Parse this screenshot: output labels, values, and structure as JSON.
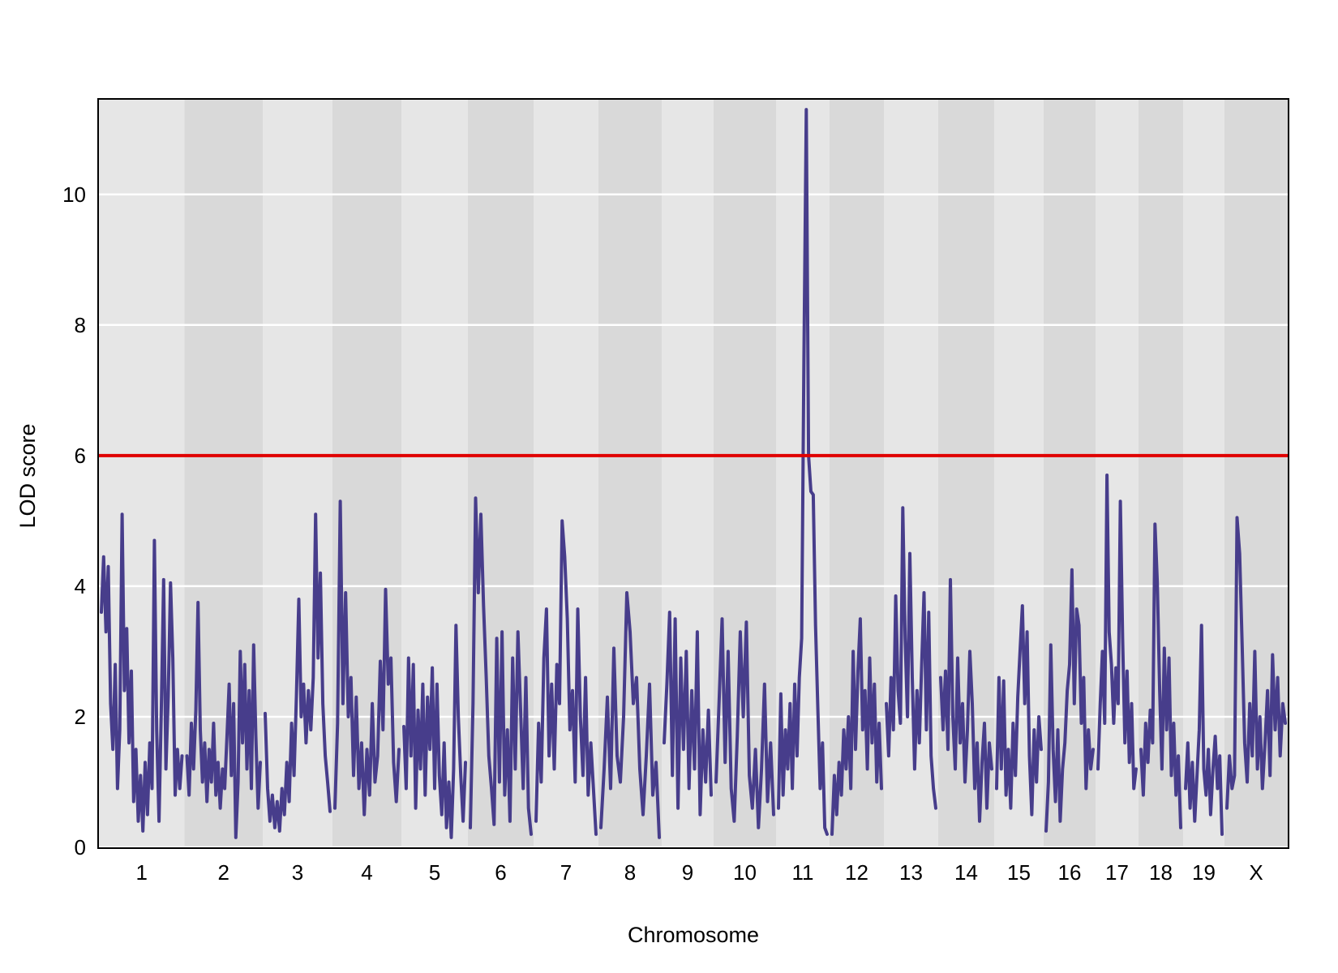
{
  "chart_data": {
    "type": "line",
    "title": "",
    "xlabel": "Chromosome",
    "ylabel": "LOD score",
    "ylim": [
      0,
      11.45
    ],
    "yticks": [
      0,
      2,
      4,
      6,
      8,
      10
    ],
    "grid": "horizontal white gridlines at each y tick, alternating gray chromosome bands",
    "legend": "none",
    "threshold_line": {
      "value": 6,
      "color": "#e00000"
    },
    "max_peak": {
      "chromosome": "11",
      "lod": 11.3
    },
    "colors": {
      "trace": "#473d8b",
      "band_light": "#e6e6e6",
      "band_dark": "#d9d9d9",
      "gridline": "#ffffff",
      "threshold": "#e00000",
      "border": "#000000",
      "text": "#000000",
      "page_background": "#ffffff"
    },
    "chromosomes": [
      {
        "name": "1",
        "length": 105.5,
        "lod": [
          3.6,
          4.45,
          3.3,
          4.3,
          2.2,
          1.5,
          2.8,
          0.9,
          1.8,
          5.1,
          2.4,
          3.35,
          1.6,
          2.7,
          0.7,
          1.5,
          0.4,
          1.1,
          0.25,
          1.3,
          0.5,
          1.6,
          0.9,
          4.7,
          1.8,
          0.4,
          2.1,
          4.1,
          1.2,
          2.3,
          4.05,
          2.9,
          0.8,
          1.5,
          0.9,
          1.4
        ]
      },
      {
        "name": "2",
        "length": 96.5,
        "lod": [
          1.4,
          0.8,
          1.9,
          1.2,
          2.1,
          3.75,
          1.8,
          1.0,
          1.6,
          0.7,
          1.5,
          1.0,
          1.9,
          0.8,
          1.3,
          0.6,
          1.2,
          0.9,
          1.7,
          2.5,
          1.1,
          2.2,
          0.15,
          1.0,
          3.0,
          1.6,
          2.8,
          1.2,
          2.4,
          0.9,
          3.1,
          1.7,
          0.6,
          1.3
        ]
      },
      {
        "name": "3",
        "length": 86,
        "lod": [
          2.05,
          0.9,
          0.4,
          0.8,
          0.3,
          0.7,
          0.25,
          0.9,
          0.5,
          1.3,
          0.7,
          1.9,
          1.1,
          2.3,
          3.8,
          2.0,
          2.5,
          1.6,
          2.4,
          1.8,
          2.6,
          5.1,
          2.9,
          4.2,
          2.2,
          1.4,
          1.0,
          0.55
        ]
      },
      {
        "name": "4",
        "length": 85,
        "lod": [
          0.6,
          1.9,
          5.3,
          2.2,
          3.9,
          2.0,
          2.6,
          1.1,
          2.3,
          0.9,
          1.6,
          0.5,
          1.5,
          0.8,
          2.2,
          1.0,
          1.4,
          2.85,
          1.8,
          3.95,
          2.5,
          2.9,
          1.3,
          0.7,
          1.5
        ]
      },
      {
        "name": "5",
        "length": 82,
        "lod": [
          1.85,
          0.9,
          2.9,
          1.4,
          2.8,
          0.6,
          2.1,
          1.2,
          2.5,
          0.8,
          2.3,
          1.5,
          2.75,
          0.9,
          2.5,
          1.1,
          0.5,
          1.6,
          0.3,
          1.0,
          0.15,
          1.2,
          3.4,
          2.0,
          1.1,
          0.4,
          1.3
        ]
      },
      {
        "name": "6",
        "length": 81,
        "lod": [
          0.3,
          2.2,
          5.35,
          3.9,
          5.1,
          3.7,
          2.6,
          1.4,
          0.9,
          0.35,
          3.2,
          1.0,
          3.3,
          0.8,
          1.8,
          0.4,
          2.9,
          1.2,
          3.3,
          2.1,
          0.9,
          2.6,
          0.6,
          0.2
        ]
      },
      {
        "name": "7",
        "length": 80,
        "lod": [
          0.4,
          1.9,
          1.0,
          2.9,
          3.65,
          1.4,
          2.5,
          1.2,
          2.8,
          2.2,
          5.0,
          4.45,
          3.5,
          1.8,
          2.4,
          1.0,
          3.65,
          2.0,
          1.1,
          2.6,
          0.8,
          1.6,
          0.9,
          0.2
        ]
      },
      {
        "name": "8",
        "length": 78,
        "lod": [
          0.3,
          1.2,
          2.3,
          0.9,
          3.05,
          1.4,
          1.0,
          2.0,
          3.9,
          3.3,
          2.2,
          2.6,
          1.2,
          0.5,
          1.4,
          2.5,
          0.8,
          1.3,
          0.15
        ]
      },
      {
        "name": "9",
        "length": 64,
        "lod": [
          1.6,
          2.5,
          3.6,
          1.1,
          3.5,
          0.6,
          2.9,
          1.5,
          3.0,
          0.9,
          2.4,
          1.2,
          3.3,
          0.5,
          1.8,
          1.0,
          2.1,
          0.8
        ]
      },
      {
        "name": "10",
        "length": 77,
        "lod": [
          1.0,
          2.2,
          3.5,
          1.3,
          3.0,
          0.9,
          0.4,
          1.7,
          3.3,
          2.0,
          3.45,
          1.1,
          0.6,
          1.5,
          0.3,
          1.2,
          2.5,
          0.7,
          1.6,
          0.5
        ]
      },
      {
        "name": "11",
        "length": 66,
        "lod": [
          0.6,
          2.35,
          0.8,
          1.8,
          1.2,
          2.2,
          0.9,
          2.5,
          1.4,
          2.6,
          3.2,
          7.5,
          11.3,
          6.0,
          5.45,
          5.4,
          3.4,
          2.1,
          0.9,
          1.6,
          0.3,
          0.2
        ]
      },
      {
        "name": "12",
        "length": 67,
        "lod": [
          0.2,
          1.1,
          0.5,
          1.3,
          0.8,
          1.8,
          1.2,
          2.0,
          0.9,
          3.0,
          1.5,
          2.7,
          3.5,
          1.8,
          2.4,
          1.2,
          2.9,
          1.6,
          2.5,
          1.0,
          1.9,
          0.9
        ]
      },
      {
        "name": "13",
        "length": 67,
        "lod": [
          2.2,
          1.4,
          2.6,
          1.8,
          3.85,
          2.4,
          1.9,
          5.2,
          3.2,
          2.0,
          4.5,
          2.6,
          1.2,
          2.4,
          1.6,
          2.8,
          3.9,
          1.8,
          3.6,
          1.4,
          0.9,
          0.6
        ]
      },
      {
        "name": "14",
        "length": 69,
        "lod": [
          2.6,
          1.8,
          2.7,
          1.5,
          4.1,
          2.0,
          1.2,
          2.9,
          1.6,
          2.2,
          1.0,
          1.8,
          3.0,
          2.2,
          0.9,
          1.6,
          0.4,
          1.3,
          1.9,
          0.6,
          1.6,
          1.2
        ]
      },
      {
        "name": "15",
        "length": 61,
        "lod": [
          0.9,
          2.6,
          1.2,
          2.55,
          0.8,
          1.5,
          0.6,
          1.9,
          1.1,
          2.3,
          3.0,
          3.7,
          2.2,
          3.3,
          1.4,
          0.5,
          1.8,
          1.0,
          2.0,
          1.5
        ]
      },
      {
        "name": "16",
        "length": 64,
        "lod": [
          0.25,
          1.0,
          3.1,
          1.5,
          0.7,
          1.8,
          0.4,
          1.2,
          1.6,
          2.4,
          2.8,
          4.25,
          2.2,
          3.65,
          3.4,
          1.9,
          2.6,
          0.9,
          1.8,
          1.2,
          1.5
        ]
      },
      {
        "name": "17",
        "length": 53,
        "lod": [
          1.2,
          2.2,
          3.0,
          1.9,
          5.7,
          3.3,
          2.8,
          1.9,
          2.75,
          2.2,
          5.3,
          3.2,
          1.6,
          2.7,
          1.3,
          2.2,
          0.9,
          1.2
        ]
      },
      {
        "name": "18",
        "length": 55,
        "lod": [
          1.5,
          0.8,
          1.9,
          1.3,
          2.1,
          1.6,
          4.95,
          4.05,
          2.4,
          1.2,
          3.05,
          1.8,
          2.9,
          1.1,
          1.9,
          0.8,
          1.4,
          0.3
        ]
      },
      {
        "name": "19",
        "length": 51,
        "lod": [
          0.9,
          1.6,
          0.6,
          1.3,
          0.4,
          1.1,
          1.8,
          3.4,
          1.2,
          0.8,
          1.5,
          0.5,
          1.2,
          1.7,
          0.9,
          1.4,
          0.2
        ]
      },
      {
        "name": "X",
        "length": 78,
        "lod": [
          0.6,
          1.4,
          0.9,
          1.1,
          5.05,
          4.5,
          3.1,
          1.6,
          1.0,
          2.2,
          1.4,
          3.0,
          1.2,
          2.0,
          0.9,
          1.6,
          2.4,
          1.1,
          2.95,
          1.8,
          2.6,
          1.4,
          2.2,
          1.9
        ]
      }
    ]
  }
}
